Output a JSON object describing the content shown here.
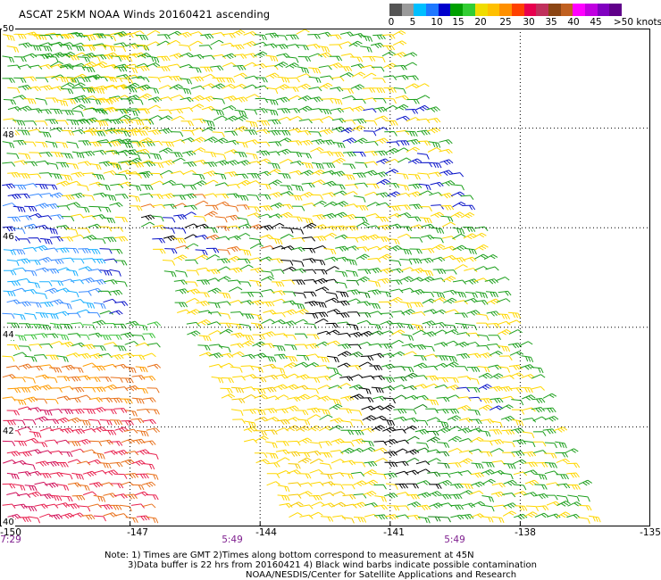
{
  "title": "ASCAT 25KM NOAA Winds 20160421 ascending",
  "legend": {
    "ticks": [
      "0",
      "5",
      "10",
      "15",
      "20",
      "25",
      "30",
      "35",
      "40",
      "45",
      ">50 knots"
    ],
    "colors": [
      "#545454",
      "#9a9a9a",
      "#00bfff",
      "#1e78ff",
      "#0000cc",
      "#00a000",
      "#32cd32",
      "#f0dc00",
      "#ffc000",
      "#ff9000",
      "#ff4000",
      "#e8004e",
      "#c0305c",
      "#8b4513",
      "#c06020",
      "#ff00ff",
      "#c000e0",
      "#8000c0",
      "#60008a"
    ]
  },
  "axes": {
    "lat_labels": [
      "50",
      "48",
      "46",
      "44",
      "42",
      "40"
    ],
    "lon_labels": [
      "-150",
      "-147",
      "-144",
      "-141",
      "-138",
      "-135"
    ],
    "times": [
      "7:29",
      "5:49",
      "5:49"
    ]
  },
  "notes": [
    "Note: 1) Times are GMT 2)Times along bottom correspond to measurement at 45N",
    "3)Data buffer is 22 hrs from 20160421 4) Black wind barbs indicate possible contamination",
    "NOAA/NESDIS/Center for Satellite Applications and Research"
  ],
  "map": {
    "lat_range": [
      40,
      50
    ],
    "lon_range": [
      -150,
      -135
    ],
    "gridlines": "dotted",
    "swaths": [
      {
        "name": "western-swath",
        "dominant_colors": [
          "green",
          "yellow",
          "blue",
          "cyan",
          "orange",
          "red",
          "crimson"
        ]
      },
      {
        "name": "eastern-swath",
        "dominant_colors": [
          "yellow",
          "green",
          "orange",
          "black",
          "blue"
        ]
      }
    ]
  }
}
